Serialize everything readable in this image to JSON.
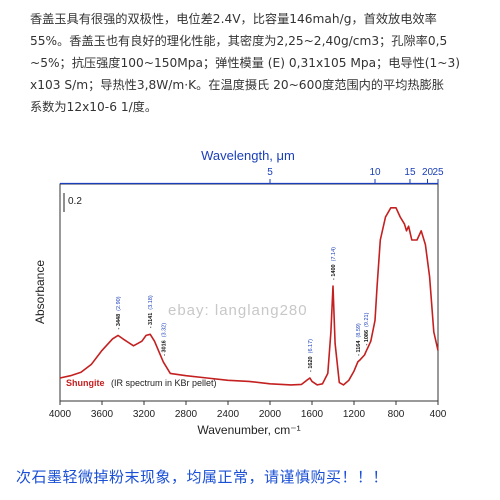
{
  "description": {
    "lines": [
      "香盖玉具有很强的双极性，电位差2.4V，比容量146mah/g，首效放电效率",
      "55%。香盖玉也有良好的理化性能，其密度为2,25~2,40g/cm3；孔隙率0,5",
      "~5%；抗压强度100~150Mpa；弹性模量 (E) 0,31x105 Mpa；电导性(1~3)",
      "x103 S/m；导热性3,8W/m·K。在温度摄氏 20~600度范围内的平均热膨胀",
      "系数为12x10-6 1/度。"
    ]
  },
  "footer": {
    "text": "次石墨轻微掉粉末现象，均属正常，请谨慎购买！！！"
  },
  "watermark": "ebay: langlang280",
  "colors": {
    "spectrum_line": "#c42020",
    "top_axis": "#1a3fb8",
    "footer_text": "#1a4fd6",
    "label_blue": "#1a3fb8"
  },
  "chart_data": {
    "type": "line",
    "title": "",
    "xlabel": "Wavenumber, cm⁻¹",
    "ylabel": "Absorbance",
    "top_xlabel": "Wavelength, μm",
    "xlim": [
      4000,
      400
    ],
    "xticks": [
      4000,
      3600,
      3200,
      2800,
      2400,
      2000,
      1600,
      1200,
      800,
      400
    ],
    "top_ticks": [
      "5",
      "10",
      "15",
      "20",
      "25"
    ],
    "top_ticks_wavenumber": [
      2000,
      1000,
      667,
      500,
      400
    ],
    "scale_bar_label": "0.2",
    "legend": {
      "name": "Shungite",
      "note": "(IR spectrum in KBr pellet)"
    },
    "series": [
      {
        "name": "Shungite",
        "x": [
          4000,
          3900,
          3800,
          3700,
          3600,
          3500,
          3448,
          3400,
          3300,
          3220,
          3180,
          3141,
          3100,
          3016,
          2950,
          2800,
          2600,
          2400,
          2200,
          2000,
          1800,
          1700,
          1650,
          1620,
          1600,
          1550,
          1500,
          1450,
          1420,
          1400,
          1380,
          1340,
          1300,
          1250,
          1200,
          1164,
          1140,
          1100,
          1086,
          1060,
          1040,
          1000,
          980,
          950,
          900,
          850,
          800,
          760,
          720,
          700,
          680,
          650,
          600,
          560,
          520,
          480,
          440,
          400
        ],
        "y": [
          0.1,
          0.11,
          0.125,
          0.16,
          0.22,
          0.27,
          0.285,
          0.27,
          0.24,
          0.26,
          0.285,
          0.29,
          0.26,
          0.17,
          0.12,
          0.11,
          0.1,
          0.09,
          0.085,
          0.075,
          0.07,
          0.072,
          0.09,
          0.1,
          0.085,
          0.07,
          0.075,
          0.12,
          0.3,
          0.5,
          0.25,
          0.08,
          0.07,
          0.09,
          0.13,
          0.17,
          0.18,
          0.2,
          0.215,
          0.24,
          0.26,
          0.35,
          0.5,
          0.7,
          0.8,
          0.84,
          0.84,
          0.8,
          0.77,
          0.74,
          0.76,
          0.7,
          0.7,
          0.74,
          0.68,
          0.54,
          0.3,
          0.22
        ]
      }
    ],
    "peak_labels": [
      {
        "wn": 3448,
        "text": "3448",
        "um": "(2.90)"
      },
      {
        "wn": 3141,
        "text": "3141",
        "um": "(3.18)"
      },
      {
        "wn": 3016,
        "text": "3016",
        "um": "(3.32)"
      },
      {
        "wn": 1620,
        "text": "1620",
        "um": "(6.17)"
      },
      {
        "wn": 1400,
        "text": "1400",
        "um": "(7.14)"
      },
      {
        "wn": 1164,
        "text": "1164",
        "um": "(8.59)"
      },
      {
        "wn": 1086,
        "text": "1086",
        "um": "(9.21)"
      }
    ],
    "ylim": [
      0,
      0.9
    ],
    "grid": false
  }
}
